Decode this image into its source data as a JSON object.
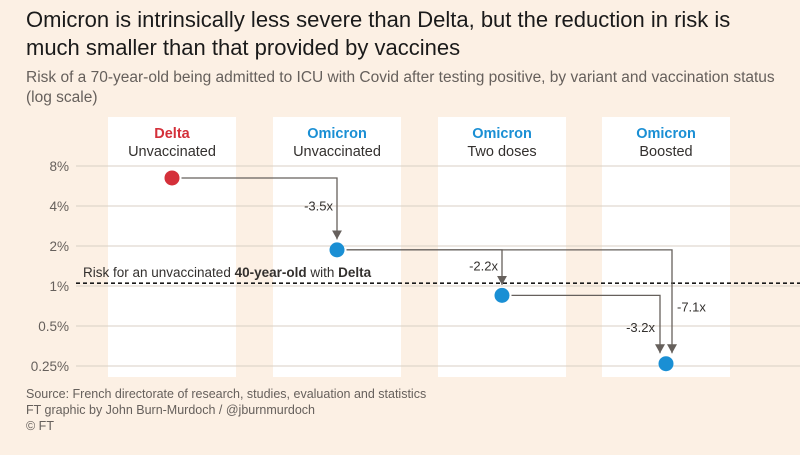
{
  "title": "Omicron is intrinsically less severe than Delta, but the reduction in risk is much smaller than that provided by vaccines",
  "subtitle": "Risk of a 70-year-old being admitted to ICU with Covid after testing positive, by variant and vaccination status (log scale)",
  "colors": {
    "background": "#fcf0e4",
    "panel": "#ffffff",
    "delta": "#d4303a",
    "omicron": "#1a8fd4",
    "arrow": "#66605c",
    "text": "#33302e"
  },
  "chart_data": {
    "type": "scatter",
    "y_scale": "log",
    "ylim": [
      0.2,
      10
    ],
    "y_ticks": [
      {
        "value": 8,
        "label": "8%"
      },
      {
        "value": 4,
        "label": "4%"
      },
      {
        "value": 2,
        "label": "2%"
      },
      {
        "value": 1,
        "label": "1%"
      },
      {
        "value": 0.5,
        "label": "0.5%"
      },
      {
        "value": 0.25,
        "label": "0.25%"
      }
    ],
    "grid": true,
    "categories": [
      {
        "variant": "Delta",
        "status": "Unvaccinated",
        "color": "delta"
      },
      {
        "variant": "Omicron",
        "status": "Unvaccinated",
        "color": "omicron"
      },
      {
        "variant": "Omicron",
        "status": "Two doses",
        "color": "omicron"
      },
      {
        "variant": "Omicron",
        "status": "Boosted",
        "color": "omicron"
      }
    ],
    "values": [
      6.5,
      1.87,
      0.85,
      0.26
    ],
    "arrows": [
      {
        "from": 0,
        "to": 1,
        "label": "-3.5x"
      },
      {
        "from": 1,
        "to": 2,
        "label": "-2.2x"
      },
      {
        "from": 2,
        "to": 3,
        "label": "-3.2x"
      },
      {
        "from": 1,
        "to": 3,
        "label": "-7.1x"
      }
    ],
    "reference_line": {
      "value": 1.05,
      "label_prefix": "Risk for an unvaccinated ",
      "label_bold": "40-year-old",
      "label_middle": " with ",
      "label_variant": "Delta"
    }
  },
  "source": {
    "line1": "Source: French directorate of research, studies, evaluation and statistics",
    "line2": "FT graphic by John Burn-Murdoch / @jburnmurdoch",
    "line3": "© FT"
  }
}
